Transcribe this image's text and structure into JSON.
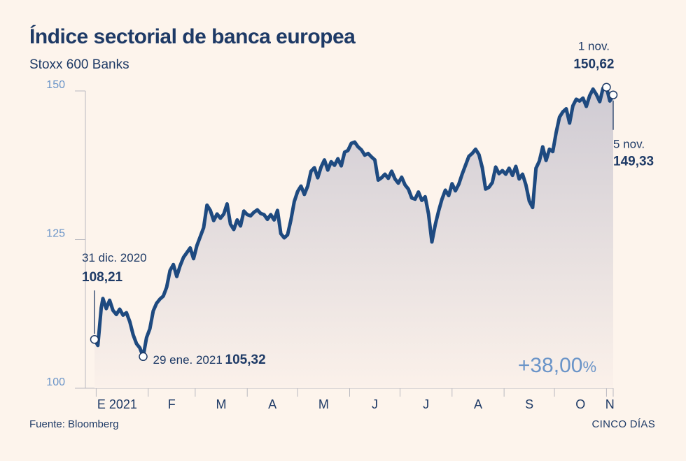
{
  "title": "Índice sectorial de banca europea",
  "subtitle": "Stoxx 600 Banks",
  "source": "Fuente: Bloomberg",
  "brand": "CINCO DÍAS",
  "colors": {
    "background": "#fdf4ec",
    "line": "#1e4a80",
    "axis_text": "#6a94c8",
    "label_text": "#1e3a66",
    "area_top": "#cfcbd3",
    "area_bottom": "#fbf1ea"
  },
  "chart_data": {
    "type": "area",
    "ylim": [
      100,
      150
    ],
    "yticks": [
      {
        "value": 100,
        "label": "100"
      },
      {
        "value": 125,
        "label": "125"
      },
      {
        "value": 150,
        "label": "150"
      }
    ],
    "xlim": [
      "2020-12-31",
      "2021-11-05"
    ],
    "month_labels": [
      {
        "date": "2021-01-01",
        "label": "E 2021"
      },
      {
        "date": "2021-02-01",
        "label": "F"
      },
      {
        "date": "2021-03-01",
        "label": "M"
      },
      {
        "date": "2021-04-01",
        "label": "A"
      },
      {
        "date": "2021-05-01",
        "label": "M"
      },
      {
        "date": "2021-06-01",
        "label": "J"
      },
      {
        "date": "2021-07-01",
        "label": "J"
      },
      {
        "date": "2021-08-01",
        "label": "A"
      },
      {
        "date": "2021-09-01",
        "label": "S"
      },
      {
        "date": "2021-10-01",
        "label": "O"
      },
      {
        "date": "2021-11-01",
        "label": "N"
      }
    ],
    "grid": false,
    "series": [
      {
        "points": [
          [
            "2020-12-31",
            108.21
          ],
          [
            "2021-01-02",
            107.2
          ],
          [
            "2021-01-04",
            113.5
          ],
          [
            "2021-01-05",
            115.1
          ],
          [
            "2021-01-07",
            113.4
          ],
          [
            "2021-01-09",
            114.8
          ],
          [
            "2021-01-11",
            113.1
          ],
          [
            "2021-01-13",
            112.4
          ],
          [
            "2021-01-15",
            113.3
          ],
          [
            "2021-01-17",
            112.3
          ],
          [
            "2021-01-19",
            112.7
          ],
          [
            "2021-01-21",
            111.2
          ],
          [
            "2021-01-23",
            109.0
          ],
          [
            "2021-01-25",
            107.5
          ],
          [
            "2021-01-27",
            106.8
          ],
          [
            "2021-01-29",
            105.32
          ],
          [
            "2021-01-31",
            108.5
          ],
          [
            "2021-02-02",
            110.0
          ],
          [
            "2021-02-04",
            113.0
          ],
          [
            "2021-02-06",
            114.3
          ],
          [
            "2021-02-08",
            115.0
          ],
          [
            "2021-02-10",
            115.5
          ],
          [
            "2021-02-12",
            117.0
          ],
          [
            "2021-02-14",
            119.8
          ],
          [
            "2021-02-16",
            120.8
          ],
          [
            "2021-02-18",
            118.8
          ],
          [
            "2021-02-20",
            120.6
          ],
          [
            "2021-02-22",
            122.0
          ],
          [
            "2021-02-24",
            122.8
          ],
          [
            "2021-02-26",
            123.6
          ],
          [
            "2021-02-28",
            121.8
          ],
          [
            "2021-03-02",
            124.0
          ],
          [
            "2021-03-04",
            125.5
          ],
          [
            "2021-03-06",
            127.0
          ],
          [
            "2021-03-08",
            130.8
          ],
          [
            "2021-03-10",
            129.9
          ],
          [
            "2021-03-12",
            128.2
          ],
          [
            "2021-03-14",
            129.3
          ],
          [
            "2021-03-16",
            128.6
          ],
          [
            "2021-03-18",
            129.3
          ],
          [
            "2021-03-20",
            131.0
          ],
          [
            "2021-03-22",
            127.6
          ],
          [
            "2021-03-24",
            126.7
          ],
          [
            "2021-03-26",
            128.3
          ],
          [
            "2021-03-28",
            127.3
          ],
          [
            "2021-03-30",
            129.8
          ],
          [
            "2021-04-01",
            129.2
          ],
          [
            "2021-04-03",
            129.0
          ],
          [
            "2021-04-05",
            129.6
          ],
          [
            "2021-04-07",
            130.0
          ],
          [
            "2021-04-09",
            129.4
          ],
          [
            "2021-04-11",
            129.2
          ],
          [
            "2021-04-13",
            128.4
          ],
          [
            "2021-04-15",
            129.2
          ],
          [
            "2021-04-17",
            128.3
          ],
          [
            "2021-04-19",
            129.9
          ],
          [
            "2021-04-21",
            126.0
          ],
          [
            "2021-04-23",
            125.3
          ],
          [
            "2021-04-25",
            125.8
          ],
          [
            "2021-04-27",
            128.3
          ],
          [
            "2021-04-29",
            131.4
          ],
          [
            "2021-05-01",
            133.1
          ],
          [
            "2021-05-03",
            134.0
          ],
          [
            "2021-05-05",
            132.6
          ],
          [
            "2021-05-07",
            134.0
          ],
          [
            "2021-05-09",
            136.5
          ],
          [
            "2021-05-11",
            137.1
          ],
          [
            "2021-05-13",
            135.4
          ],
          [
            "2021-05-15",
            137.2
          ],
          [
            "2021-05-17",
            138.4
          ],
          [
            "2021-05-19",
            136.7
          ],
          [
            "2021-05-21",
            138.1
          ],
          [
            "2021-05-23",
            137.5
          ],
          [
            "2021-05-25",
            138.6
          ],
          [
            "2021-05-27",
            137.4
          ],
          [
            "2021-05-29",
            139.7
          ],
          [
            "2021-05-31",
            140.0
          ],
          [
            "2021-06-02",
            141.2
          ],
          [
            "2021-06-04",
            141.4
          ],
          [
            "2021-06-06",
            140.6
          ],
          [
            "2021-06-08",
            140.1
          ],
          [
            "2021-06-10",
            139.2
          ],
          [
            "2021-06-12",
            139.5
          ],
          [
            "2021-06-14",
            138.9
          ],
          [
            "2021-06-16",
            138.4
          ],
          [
            "2021-06-18",
            135.0
          ],
          [
            "2021-06-20",
            135.4
          ],
          [
            "2021-06-22",
            136.0
          ],
          [
            "2021-06-24",
            135.3
          ],
          [
            "2021-06-26",
            136.5
          ],
          [
            "2021-06-28",
            135.2
          ],
          [
            "2021-06-30",
            134.5
          ],
          [
            "2021-07-02",
            135.5
          ],
          [
            "2021-07-04",
            134.2
          ],
          [
            "2021-07-06",
            133.5
          ],
          [
            "2021-07-08",
            132.0
          ],
          [
            "2021-07-10",
            131.8
          ],
          [
            "2021-07-12",
            133.0
          ],
          [
            "2021-07-14",
            131.6
          ],
          [
            "2021-07-16",
            132.2
          ],
          [
            "2021-07-18",
            129.3
          ],
          [
            "2021-07-20",
            124.6
          ],
          [
            "2021-07-22",
            127.5
          ],
          [
            "2021-07-24",
            129.8
          ],
          [
            "2021-07-26",
            131.8
          ],
          [
            "2021-07-28",
            133.3
          ],
          [
            "2021-07-30",
            132.4
          ],
          [
            "2021-08-01",
            134.4
          ],
          [
            "2021-08-03",
            133.2
          ],
          [
            "2021-08-05",
            134.3
          ],
          [
            "2021-08-07",
            136.0
          ],
          [
            "2021-08-09",
            137.5
          ],
          [
            "2021-08-11",
            139.0
          ],
          [
            "2021-08-13",
            139.5
          ],
          [
            "2021-08-15",
            140.2
          ],
          [
            "2021-08-17",
            139.3
          ],
          [
            "2021-08-19",
            137.1
          ],
          [
            "2021-08-21",
            133.5
          ],
          [
            "2021-08-23",
            133.8
          ],
          [
            "2021-08-25",
            134.6
          ],
          [
            "2021-08-27",
            137.2
          ],
          [
            "2021-08-29",
            136.1
          ],
          [
            "2021-08-31",
            136.6
          ],
          [
            "2021-09-02",
            136.0
          ],
          [
            "2021-09-04",
            137.0
          ],
          [
            "2021-09-06",
            135.8
          ],
          [
            "2021-09-08",
            137.3
          ],
          [
            "2021-09-10",
            135.2
          ],
          [
            "2021-09-12",
            136.0
          ],
          [
            "2021-09-14",
            134.2
          ],
          [
            "2021-09-16",
            131.5
          ],
          [
            "2021-09-18",
            130.4
          ],
          [
            "2021-09-20",
            137.0
          ],
          [
            "2021-09-22",
            138.2
          ],
          [
            "2021-09-24",
            140.6
          ],
          [
            "2021-09-26",
            138.3
          ],
          [
            "2021-09-28",
            140.2
          ],
          [
            "2021-09-30",
            139.8
          ],
          [
            "2021-10-02",
            143.0
          ],
          [
            "2021-10-04",
            145.6
          ],
          [
            "2021-10-06",
            146.5
          ],
          [
            "2021-10-08",
            147.0
          ],
          [
            "2021-10-10",
            144.6
          ],
          [
            "2021-10-12",
            147.5
          ],
          [
            "2021-10-14",
            148.6
          ],
          [
            "2021-10-16",
            148.3
          ],
          [
            "2021-10-18",
            148.8
          ],
          [
            "2021-10-20",
            147.4
          ],
          [
            "2021-10-22",
            149.2
          ],
          [
            "2021-10-24",
            150.3
          ],
          [
            "2021-10-26",
            149.4
          ],
          [
            "2021-10-28",
            148.2
          ],
          [
            "2021-10-30",
            150.5
          ],
          [
            "2021-11-01",
            150.62
          ],
          [
            "2021-11-03",
            148.3
          ],
          [
            "2021-11-05",
            149.33
          ]
        ]
      }
    ],
    "annotations": [
      {
        "date": "2020-12-31",
        "value": 108.21,
        "label": "31 dic. 2020",
        "value_label": "108,21"
      },
      {
        "date": "2021-01-29",
        "value": 105.32,
        "label": "29 ene. 2021",
        "value_label": "105,32"
      },
      {
        "date": "2021-11-01",
        "value": 150.62,
        "label": "1 nov.",
        "value_label": "150,62"
      },
      {
        "date": "2021-11-05",
        "value": 149.33,
        "label": "5 nov.",
        "value_label": "149,33"
      }
    ],
    "change_label": "+38,00",
    "change_unit": "%"
  }
}
